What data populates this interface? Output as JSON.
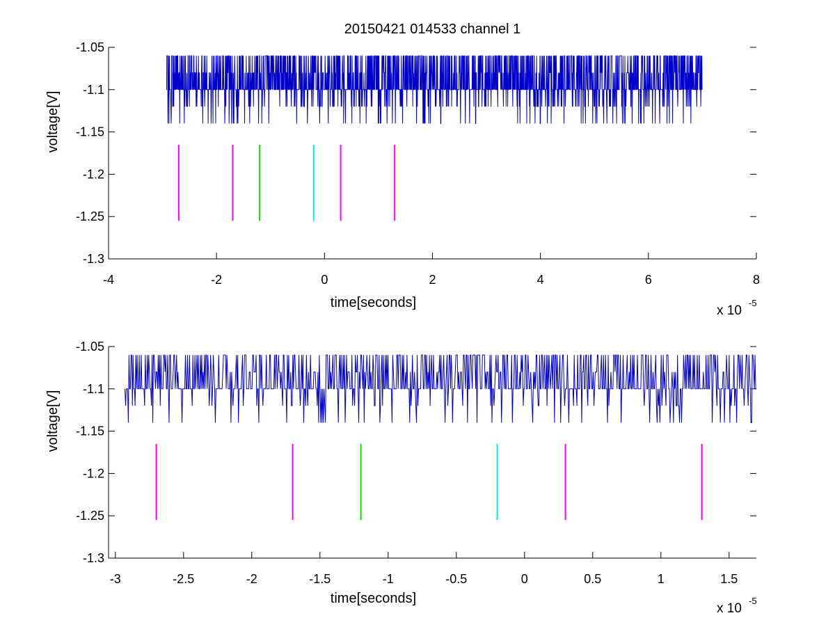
{
  "chart_data": [
    {
      "type": "line",
      "title": "20150421 014533 channel 1",
      "xlabel": "time[seconds]",
      "ylabel": "voltage[V]",
      "x_multiplier": "x 10",
      "x_multiplier_exponent": "-5",
      "xlim": [
        -4,
        8
      ],
      "ylim": [
        -1.3,
        -1.05
      ],
      "xticks": [
        -4,
        -2,
        0,
        2,
        4,
        6,
        8
      ],
      "xtick_labels": [
        "-4",
        "-2",
        "0",
        "2",
        "4",
        "6",
        "8"
      ],
      "yticks": [
        -1.3,
        -1.25,
        -1.2,
        -1.15,
        -1.1,
        -1.05
      ],
      "ytick_labels": [
        "-1.3",
        "-1.25",
        "-1.2",
        "-1.15",
        "-1.1",
        "-1.05"
      ],
      "series": [
        {
          "kind": "signal",
          "color": "#0000cc",
          "x_range": [
            -2.93,
            7.0
          ],
          "levels": [
            -1.06,
            -1.08,
            -1.1,
            -1.12,
            -1.14
          ],
          "baseline": -1.1,
          "samples": 2000
        }
      ],
      "markers": [
        {
          "x": -2.7,
          "y_range": [
            -1.255,
            -1.165
          ],
          "color": "#ff00ff"
        },
        {
          "x": -1.7,
          "y_range": [
            -1.255,
            -1.165
          ],
          "color": "#ff00ff"
        },
        {
          "x": -1.2,
          "y_range": [
            -1.255,
            -1.165
          ],
          "color": "#00dd00"
        },
        {
          "x": -0.2,
          "y_range": [
            -1.255,
            -1.165
          ],
          "color": "#00eeee"
        },
        {
          "x": 0.3,
          "y_range": [
            -1.255,
            -1.165
          ],
          "color": "#ff00ff"
        },
        {
          "x": 1.3,
          "y_range": [
            -1.255,
            -1.165
          ],
          "color": "#ff00ff"
        }
      ]
    },
    {
      "type": "line",
      "title": "",
      "xlabel": "time[seconds]",
      "ylabel": "voltage[V]",
      "x_multiplier": "x 10",
      "x_multiplier_exponent": "-5",
      "xlim": [
        -3.05,
        1.7
      ],
      "ylim": [
        -1.3,
        -1.05
      ],
      "xticks": [
        -3,
        -2.5,
        -2,
        -1.5,
        -1,
        -0.5,
        0,
        0.5,
        1,
        1.5
      ],
      "xtick_labels": [
        "-3",
        "-2.5",
        "-2",
        "-1.5",
        "-1",
        "-0.5",
        "0",
        "0.5",
        "1",
        "1.5"
      ],
      "yticks": [
        -1.3,
        -1.25,
        -1.2,
        -1.15,
        -1.1,
        -1.05
      ],
      "ytick_labels": [
        "-1.3",
        "-1.25",
        "-1.2",
        "-1.15",
        "-1.1",
        "-1.05"
      ],
      "series": [
        {
          "kind": "signal",
          "color": "#0000cc",
          "x_range": [
            -2.93,
            1.7
          ],
          "levels": [
            -1.06,
            -1.08,
            -1.1,
            -1.12,
            -1.14
          ],
          "baseline": -1.1,
          "samples": 930
        }
      ],
      "markers": [
        {
          "x": -2.7,
          "y_range": [
            -1.255,
            -1.165
          ],
          "color": "#ff00ff"
        },
        {
          "x": -1.7,
          "y_range": [
            -1.255,
            -1.165
          ],
          "color": "#ff00ff"
        },
        {
          "x": -1.2,
          "y_range": [
            -1.255,
            -1.165
          ],
          "color": "#00dd00"
        },
        {
          "x": -0.2,
          "y_range": [
            -1.255,
            -1.165
          ],
          "color": "#00eeee"
        },
        {
          "x": 0.3,
          "y_range": [
            -1.255,
            -1.165
          ],
          "color": "#ff00ff"
        },
        {
          "x": 1.3,
          "y_range": [
            -1.255,
            -1.165
          ],
          "color": "#ff00ff"
        }
      ]
    }
  ]
}
